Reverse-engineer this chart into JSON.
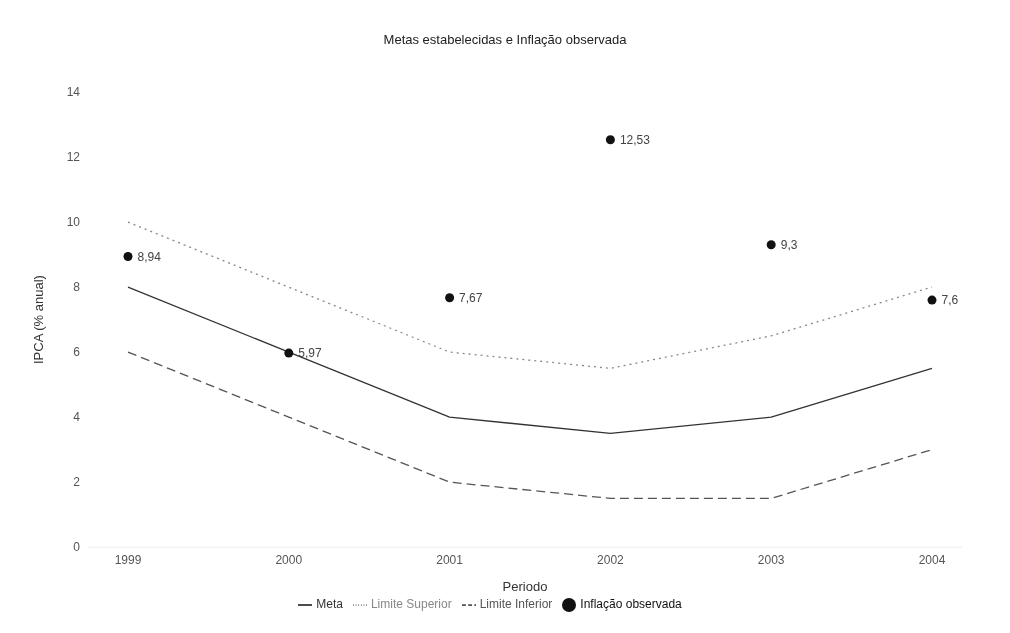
{
  "chart_data": {
    "type": "line",
    "title": "Metas estabelecidas e Inflação observada",
    "xlabel": "Periodo",
    "ylabel": "IPCA (% anual)",
    "categories": [
      "1999",
      "2000",
      "2001",
      "2002",
      "2003",
      "2004"
    ],
    "ylim": [
      0,
      14
    ],
    "yticks": [
      0,
      2,
      4,
      6,
      8,
      10,
      12,
      14
    ],
    "grid": false,
    "legend": "bottom",
    "series": [
      {
        "name": "Meta",
        "color": "#333333",
        "line_style": "solid",
        "values": [
          8,
          6,
          4,
          3.5,
          4,
          5.5
        ]
      },
      {
        "name": "Limite Superior",
        "color": "#888888",
        "line_style": "dotted",
        "values": [
          10,
          8,
          6,
          5.5,
          6.5,
          8
        ]
      },
      {
        "name": "Limite Inferior",
        "color": "#555555",
        "line_style": "dashed",
        "values": [
          6,
          4,
          2,
          1.5,
          1.5,
          3
        ]
      },
      {
        "name": "Inflação observada",
        "type": "scatter",
        "color": "#111111",
        "marker": "circle",
        "values": [
          8.94,
          5.97,
          7.67,
          12.53,
          9.3,
          7.6
        ],
        "value_labels": [
          "8,94",
          "5,97",
          "7,67",
          "12,53",
          "9,3",
          "7,6"
        ]
      }
    ]
  }
}
